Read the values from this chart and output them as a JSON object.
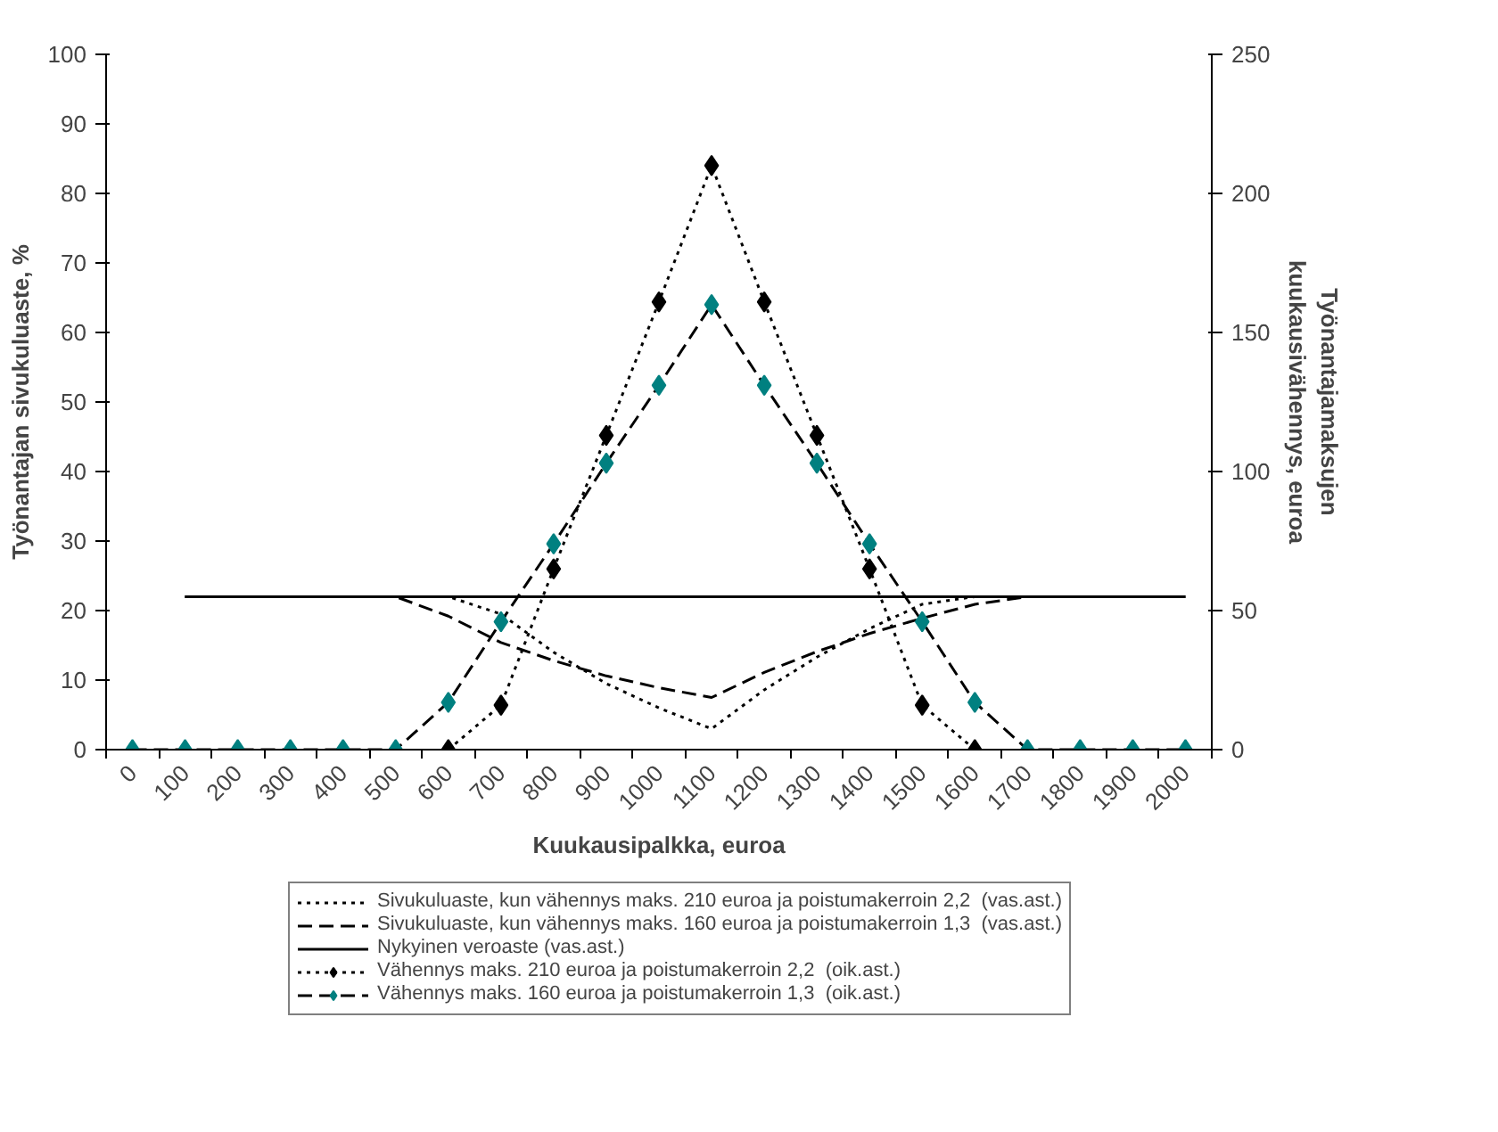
{
  "chart_data": {
    "type": "line",
    "xlabel": "Kuukausipalkka, euroa",
    "ylabel": "Työnantajan sivukuluaste, %",
    "y2label": "Työnantajamaksujen\nkuukausivähennys, euroa",
    "categories": [
      "0",
      "100",
      "200",
      "300",
      "400",
      "500",
      "600",
      "700",
      "800",
      "900",
      "1000",
      "1100",
      "1200",
      "1300",
      "1400",
      "1500",
      "1600",
      "1700",
      "1800",
      "1900",
      "2000"
    ],
    "ylim": [
      0,
      100
    ],
    "yticks": [
      0,
      10,
      20,
      30,
      40,
      50,
      60,
      70,
      80,
      90,
      100
    ],
    "y2lim": [
      0,
      250
    ],
    "y2ticks": [
      0,
      50,
      100,
      150,
      200,
      250
    ],
    "grid": false,
    "legend": "bottom",
    "series": [
      {
        "name": "Sivukuluaste, kun vähennys maks. 210 euroa ja poistumakerroin 2,2  (vas.ast.)",
        "color": "#000000",
        "line_style": "dotted",
        "marker": "none",
        "values": [
          null,
          22,
          22,
          22,
          22,
          22,
          22,
          19.5,
          14,
          9.5,
          6,
          3,
          8.6,
          13.3,
          17.4,
          20.9,
          22,
          22,
          22,
          22,
          22
        ]
      },
      {
        "name": "Sivukuluaste, kun vähennys maks. 160 euroa ja poistumakerroin 1,3  (vas.ast.)",
        "color": "#000000",
        "line_style": "dashed",
        "marker": "none",
        "values": [
          null,
          22,
          22,
          22,
          22,
          22,
          19.2,
          15.4,
          12.8,
          10.6,
          8.9,
          7.5,
          11.1,
          14.1,
          16.7,
          18.9,
          20.9,
          22,
          22,
          22,
          22
        ]
      },
      {
        "name": "Nykyinen veroaste (vas.ast.)",
        "color": "#000000",
        "line_style": "solid",
        "marker": "none",
        "values": [
          null,
          22,
          22,
          22,
          22,
          22,
          22,
          22,
          22,
          22,
          22,
          22,
          22,
          22,
          22,
          22,
          22,
          22,
          22,
          22,
          22
        ]
      },
      {
        "name": "Vähennys maks. 210 euroa ja poistumakerroin 2,2  (oik.ast.)",
        "color": "#000000",
        "line_style": "dotted",
        "marker": "diamond",
        "axis": "y2",
        "values": [
          null,
          null,
          null,
          null,
          null,
          null,
          0,
          16,
          65,
          113,
          161,
          210,
          161,
          113,
          65,
          16,
          0,
          null,
          null,
          null,
          null
        ]
      },
      {
        "name": "Vähennys maks. 160 euroa ja poistumakerroin 1,3  (oik.ast.)",
        "color": "#008080",
        "line_style": "dashed",
        "marker": "diamond",
        "axis": "y2",
        "values": [
          0,
          0,
          0,
          0,
          0,
          0,
          17,
          46,
          74,
          103,
          131,
          160,
          131,
          103,
          74,
          46,
          17,
          0,
          0,
          0,
          0
        ]
      }
    ]
  }
}
